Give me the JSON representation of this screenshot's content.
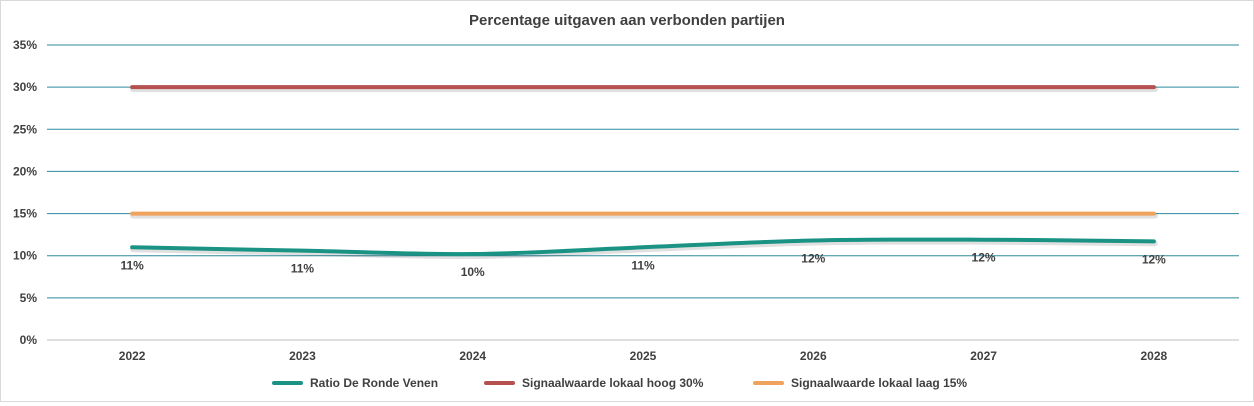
{
  "chart_data": {
    "type": "line",
    "title": "Percentage uitgaven aan verbonden partijen",
    "xlabel": "",
    "ylabel": "",
    "categories": [
      "2022",
      "2023",
      "2024",
      "2025",
      "2026",
      "2027",
      "2028"
    ],
    "ylim": [
      0,
      35
    ],
    "yticks": [
      "0%",
      "5%",
      "10%",
      "15%",
      "20%",
      "25%",
      "30%",
      "35%"
    ],
    "ytick_values": [
      0,
      5,
      10,
      15,
      20,
      25,
      30,
      35
    ],
    "grid": true,
    "legend_position": "bottom",
    "series": [
      {
        "name": "Ratio De Ronde Venen",
        "values": [
          11,
          10.6,
          10.2,
          11,
          11.8,
          11.9,
          11.7
        ],
        "data_labels": [
          "11%",
          "11%",
          "10%",
          "11%",
          "12%",
          "12%",
          "12%"
        ],
        "color": "#1a9384",
        "smooth": true
      },
      {
        "name": "Signaalwaarde lokaal hoog 30%",
        "values": [
          30,
          30,
          30,
          30,
          30,
          30,
          30
        ],
        "color": "#b5504f",
        "smooth": false
      },
      {
        "name": "Signaalwaarde lokaal laag 15%",
        "values": [
          15,
          15,
          15,
          15,
          15,
          15,
          15
        ],
        "color": "#f0a35c",
        "smooth": false
      }
    ],
    "gridline_color": "#2e8a9e"
  }
}
